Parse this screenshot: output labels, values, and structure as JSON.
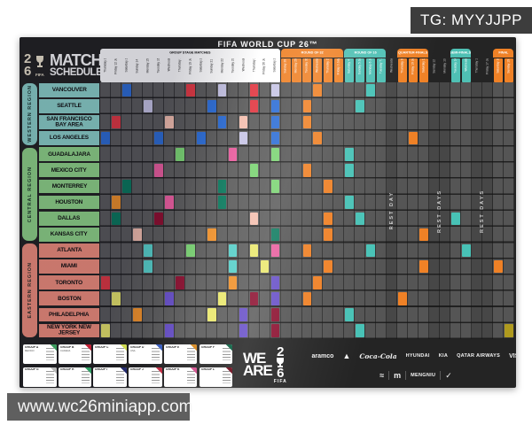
{
  "overlay": {
    "tg": "TG: MYYJJPP",
    "website": "www.wc26miniapp.com"
  },
  "header": {
    "title": "FIFA WORLD CUP 26™",
    "logo_fifa": "FIFA",
    "schedule_line1": "MATCH",
    "schedule_line2": "SCHEDULE"
  },
  "columns": {
    "stages": [
      {
        "label": "GROUP STAGE MATCHES",
        "start": 0,
        "span": 17,
        "bg": "#ffffff",
        "fg": "#111111"
      },
      {
        "label": "ROUND OF 32",
        "start": 17,
        "span": 6,
        "bg": "#ef8126",
        "fg": "#ffffff"
      },
      {
        "label": "ROUND OF 16",
        "start": 23,
        "span": 4,
        "bg": "#4fc0b4",
        "fg": "#ffffff"
      },
      {
        "label": "QUARTER-FINALS",
        "start": 28,
        "span": 3,
        "bg": "#ef8126",
        "fg": "#ffffff"
      },
      {
        "label": "SEMI-FINALS",
        "start": 33,
        "span": 2,
        "bg": "#4fc0b4",
        "fg": "#ffffff"
      },
      {
        "label": "FINAL",
        "start": 37,
        "span": 2,
        "bg": "#ef8126",
        "fg": "#ffffff"
      }
    ],
    "dates": [
      {
        "label": "Thursday 11 June",
        "stage": 0
      },
      {
        "label": "Friday 12 June",
        "stage": 0
      },
      {
        "label": "Saturday 13 June",
        "stage": 0
      },
      {
        "label": "Sunday 14 June",
        "stage": 0
      },
      {
        "label": "Monday 15 June",
        "stage": 0
      },
      {
        "label": "Tuesday 16 June",
        "stage": 0
      },
      {
        "label": "Wednesday 17 June",
        "stage": 0
      },
      {
        "label": "Thursday 18 June",
        "stage": 0
      },
      {
        "label": "Friday 19 June",
        "stage": 0
      },
      {
        "label": "Saturday 20 June",
        "stage": 0
      },
      {
        "label": "Sunday 21 June",
        "stage": 0
      },
      {
        "label": "Monday 22 June",
        "stage": 0
      },
      {
        "label": "Tuesday 23 June",
        "stage": 0
      },
      {
        "label": "Wednesday 24 June",
        "stage": 0
      },
      {
        "label": "Thursday 25 June",
        "stage": 0
      },
      {
        "label": "Friday 26 June",
        "stage": 0
      },
      {
        "label": "Saturday 27 June",
        "stage": 0
      },
      {
        "label": "Sunday 28 June",
        "stage": 1
      },
      {
        "label": "Monday 29 June",
        "stage": 1
      },
      {
        "label": "Tuesday 30 June",
        "stage": 1
      },
      {
        "label": "Wednesday 1 July",
        "stage": 1
      },
      {
        "label": "Thursday 2 July",
        "stage": 1
      },
      {
        "label": "Friday 3 July",
        "stage": 1
      },
      {
        "label": "Saturday 4 July",
        "stage": 2
      },
      {
        "label": "Sunday 5 July",
        "stage": 2
      },
      {
        "label": "Monday 6 July",
        "stage": 2
      },
      {
        "label": "Tuesday 7 July",
        "stage": 2
      },
      {
        "label": "Wednesday 8 July",
        "stage": -1
      },
      {
        "label": "Thursday 9 July",
        "stage": 3
      },
      {
        "label": "Friday 10 July",
        "stage": 3
      },
      {
        "label": "Saturday 11 July",
        "stage": 3
      },
      {
        "label": "Sunday 12 July",
        "stage": -1
      },
      {
        "label": "Monday 13 July",
        "stage": -1
      },
      {
        "label": "Tuesday 14 July",
        "stage": 4
      },
      {
        "label": "Wednesday 15 July",
        "stage": 4
      },
      {
        "label": "Thursday 16 July",
        "stage": -1
      },
      {
        "label": "Friday 17 July",
        "stage": -1
      },
      {
        "label": "Saturday 18 July",
        "stage": 5
      },
      {
        "label": "Sunday 19 July",
        "stage": 5
      }
    ],
    "rest_notes": [
      {
        "text": "REST DAY",
        "col": 27,
        "span": 1
      },
      {
        "text": "REST DAYS",
        "col": 31,
        "span": 2
      },
      {
        "text": "REST DAYS",
        "col": 35,
        "span": 2
      }
    ]
  },
  "regions": [
    {
      "name": "WESTERN REGION",
      "color": "#8fd4cd",
      "cities": [
        "VANCOUVER",
        "SEATTLE",
        "SAN FRANCISCO BAY AREA",
        "LOS ANGELES"
      ]
    },
    {
      "name": "CENTRAL REGION",
      "color": "#92d88a",
      "cities": [
        "GUADALAJARA",
        "MEXICO CITY",
        "MONTERREY",
        "HOUSTON",
        "DALLAS",
        "KANSAS CITY"
      ]
    },
    {
      "name": "EASTERN REGION",
      "color": "#f4917f",
      "cities": [
        "ATLANTA",
        "MIAMI",
        "TORONTO",
        "BOSTON",
        "PHILADELPHIA",
        "NEW YORK NEW JERSEY"
      ]
    }
  ],
  "palette": {
    "blue": {
      "hex": "#2f6fd6",
      "ink": "light"
    },
    "red": {
      "hex": "#e23b45",
      "ink": "light"
    },
    "lav": {
      "hex": "#c8c6e6",
      "ink": "dark"
    },
    "peach": {
      "hex": "#f4c0b0",
      "ink": "dark"
    },
    "magenta": {
      "hex": "#ea5f9f",
      "ink": "light"
    },
    "green": {
      "hex": "#7cd474",
      "ink": "dark"
    },
    "dkgreen": {
      "hex": "#0c7a5e",
      "ink": "light"
    },
    "cyan": {
      "hex": "#58cfc9",
      "ink": "dark"
    },
    "yellow": {
      "hex": "#eae86e",
      "ink": "dark"
    },
    "purple": {
      "hex": "#6850c8",
      "ink": "light"
    },
    "maroon": {
      "hex": "#8c1030",
      "ink": "light"
    },
    "orangeGrp": {
      "hex": "#f0922c",
      "ink": "light"
    },
    "orange": {
      "hex": "#ef8126",
      "ink": "light"
    },
    "teal": {
      "hex": "#48c2b6",
      "ink": "light"
    },
    "gold": {
      "hex": "#af9a1e",
      "ink": "light"
    }
  },
  "matches": [
    [
      0,
      2,
      "blue"
    ],
    [
      0,
      8,
      "red"
    ],
    [
      0,
      11,
      "lav"
    ],
    [
      0,
      14,
      "red"
    ],
    [
      0,
      16,
      "lav"
    ],
    [
      0,
      20,
      "orange"
    ],
    [
      0,
      25,
      "teal"
    ],
    [
      1,
      4,
      "lav"
    ],
    [
      1,
      10,
      "blue"
    ],
    [
      1,
      14,
      "red"
    ],
    [
      1,
      16,
      "blue"
    ],
    [
      1,
      19,
      "orange"
    ],
    [
      1,
      24,
      "teal"
    ],
    [
      2,
      1,
      "red"
    ],
    [
      2,
      6,
      "peach"
    ],
    [
      2,
      11,
      "blue"
    ],
    [
      2,
      13,
      "peach"
    ],
    [
      2,
      16,
      "blue"
    ],
    [
      2,
      19,
      "orange"
    ],
    [
      3,
      0,
      "blue"
    ],
    [
      3,
      5,
      "blue"
    ],
    [
      3,
      9,
      "blue"
    ],
    [
      3,
      13,
      "lav"
    ],
    [
      3,
      16,
      "blue"
    ],
    [
      3,
      20,
      "orange"
    ],
    [
      3,
      29,
      "orange"
    ],
    [
      4,
      7,
      "green"
    ],
    [
      4,
      12,
      "magenta"
    ],
    [
      4,
      16,
      "green"
    ],
    [
      4,
      23,
      "teal"
    ],
    [
      5,
      5,
      "magenta"
    ],
    [
      5,
      14,
      "green"
    ],
    [
      5,
      19,
      "orange"
    ],
    [
      5,
      23,
      "teal"
    ],
    [
      6,
      2,
      "dkgreen"
    ],
    [
      6,
      11,
      "dkgreen"
    ],
    [
      6,
      16,
      "green"
    ],
    [
      6,
      21,
      "orange"
    ],
    [
      7,
      1,
      "orangeGrp"
    ],
    [
      7,
      6,
      "magenta"
    ],
    [
      7,
      11,
      "dkgreen"
    ],
    [
      7,
      23,
      "teal"
    ],
    [
      8,
      1,
      "dkgreen"
    ],
    [
      8,
      5,
      "maroon"
    ],
    [
      8,
      14,
      "peach"
    ],
    [
      8,
      21,
      "orange"
    ],
    [
      8,
      24,
      "teal"
    ],
    [
      8,
      33,
      "teal"
    ],
    [
      9,
      3,
      "peach"
    ],
    [
      9,
      10,
      "orangeGrp"
    ],
    [
      9,
      16,
      "dkgreen"
    ],
    [
      9,
      21,
      "orange"
    ],
    [
      9,
      30,
      "orange"
    ],
    [
      10,
      4,
      "cyan"
    ],
    [
      10,
      8,
      "green"
    ],
    [
      10,
      12,
      "cyan"
    ],
    [
      10,
      14,
      "yellow"
    ],
    [
      10,
      16,
      "magenta"
    ],
    [
      10,
      19,
      "orange"
    ],
    [
      10,
      25,
      "teal"
    ],
    [
      10,
      34,
      "teal"
    ],
    [
      11,
      4,
      "cyan"
    ],
    [
      11,
      12,
      "cyan"
    ],
    [
      11,
      15,
      "yellow"
    ],
    [
      11,
      21,
      "orange"
    ],
    [
      11,
      30,
      "orange"
    ],
    [
      11,
      37,
      "orange"
    ],
    [
      12,
      0,
      "red"
    ],
    [
      12,
      7,
      "maroon"
    ],
    [
      12,
      12,
      "orangeGrp"
    ],
    [
      12,
      16,
      "purple"
    ],
    [
      12,
      20,
      "orange"
    ],
    [
      13,
      1,
      "yellow"
    ],
    [
      13,
      6,
      "purple"
    ],
    [
      13,
      11,
      "yellow"
    ],
    [
      13,
      14,
      "maroon"
    ],
    [
      13,
      16,
      "purple"
    ],
    [
      13,
      19,
      "orange"
    ],
    [
      13,
      28,
      "orange"
    ],
    [
      14,
      3,
      "orangeGrp"
    ],
    [
      14,
      10,
      "yellow"
    ],
    [
      14,
      13,
      "purple"
    ],
    [
      14,
      16,
      "maroon"
    ],
    [
      14,
      23,
      "teal"
    ],
    [
      15,
      0,
      "yellow"
    ],
    [
      15,
      6,
      "purple"
    ],
    [
      15,
      13,
      "purple"
    ],
    [
      15,
      16,
      "maroon"
    ],
    [
      15,
      24,
      "teal"
    ],
    [
      15,
      38,
      "gold"
    ]
  ],
  "legend": {
    "groups": [
      {
        "label": "GROUP A",
        "team": "MEXICO",
        "color": "#3a9a5c"
      },
      {
        "label": "GROUP B",
        "team": "CANADA",
        "color": "#c41e35"
      },
      {
        "label": "GROUP C",
        "team": "",
        "color": "#cdd94e"
      },
      {
        "label": "GROUP D",
        "team": "USA",
        "color": "#3b5fc0"
      },
      {
        "label": "GROUP E",
        "team": "",
        "color": "#d98f2b"
      },
      {
        "label": "GROUP F",
        "team": "",
        "color": "#1f6e52"
      },
      {
        "label": "GROUP G",
        "team": "",
        "color": "#b8b8b8"
      },
      {
        "label": "GROUP H",
        "team": "",
        "color": "#2f9e62"
      },
      {
        "label": "GROUP I",
        "team": "",
        "color": "#232a6e"
      },
      {
        "label": "GROUP J",
        "team": "",
        "color": "#c23046"
      },
      {
        "label": "GROUP K",
        "team": "",
        "color": "#d85a96"
      },
      {
        "label": "GROUP L",
        "team": "",
        "color": "#7a1f2e"
      }
    ]
  },
  "footer": {
    "we_line1": "WE",
    "we_line2": "ARE",
    "we_num_top": "2",
    "we_num_bottom": "6",
    "we_fifa": "FIFA",
    "sponsors_row1": [
      {
        "name": "aramco-logo",
        "label": "aramco",
        "style": "text"
      },
      {
        "name": "adidas-logo",
        "label": "▲",
        "style": "glyph"
      },
      {
        "name": "coca-cola-logo",
        "label": "Coca-Cola",
        "style": "script"
      },
      {
        "name": "hyundai-logo",
        "label": "HYUNDAI",
        "style": "small"
      },
      {
        "name": "kia-logo",
        "label": "KIA",
        "style": "small"
      },
      {
        "name": "qatar-airways-logo",
        "label": "QATAR AIRWAYS",
        "style": "small"
      },
      {
        "name": "visa-logo",
        "label": "VISA",
        "style": "text"
      }
    ],
    "sponsors_row2": [
      {
        "name": "wave-logo",
        "label": "≈",
        "style": "glyph"
      },
      {
        "name": "mcdonalds-logo",
        "label": "m",
        "style": "glyph"
      },
      {
        "name": "mengniu-logo",
        "label": "MENGNIU",
        "style": "small"
      },
      {
        "name": "check-logo",
        "label": "✓",
        "style": "glyph"
      }
    ]
  }
}
